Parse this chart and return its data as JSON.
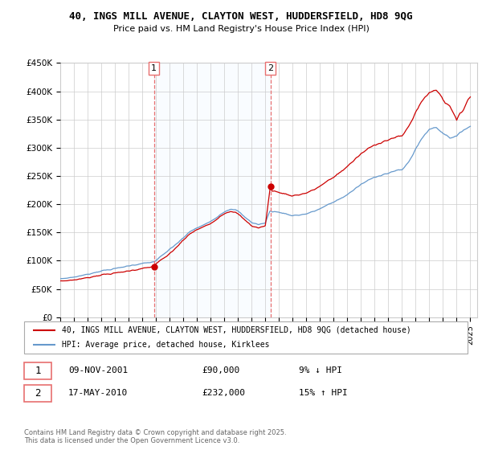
{
  "title": "40, INGS MILL AVENUE, CLAYTON WEST, HUDDERSFIELD, HD8 9QG",
  "subtitle": "Price paid vs. HM Land Registry's House Price Index (HPI)",
  "ylim": [
    0,
    450000
  ],
  "yticks": [
    0,
    50000,
    100000,
    150000,
    200000,
    250000,
    300000,
    350000,
    400000,
    450000
  ],
  "ytick_labels": [
    "£0",
    "£50K",
    "£100K",
    "£150K",
    "£200K",
    "£250K",
    "£300K",
    "£350K",
    "£400K",
    "£450K"
  ],
  "xlim_start": 1995.0,
  "xlim_end": 2025.5,
  "sale1_x": 2001.86,
  "sale1_y": 90000,
  "sale2_x": 2010.37,
  "sale2_y": 232000,
  "sale1_date": "09-NOV-2001",
  "sale1_price": "£90,000",
  "sale1_hpi": "9% ↓ HPI",
  "sale2_date": "17-MAY-2010",
  "sale2_price": "£232,000",
  "sale2_hpi": "15% ↑ HPI",
  "line_color_price": "#cc0000",
  "line_color_hpi": "#6699cc",
  "fill_color": "#ddeeff",
  "vline_color": "#e87070",
  "background_color": "#ffffff",
  "plot_bg_color": "#ffffff",
  "grid_color": "#cccccc",
  "legend_line1": "40, INGS MILL AVENUE, CLAYTON WEST, HUDDERSFIELD, HD8 9QG (detached house)",
  "legend_line2": "HPI: Average price, detached house, Kirklees",
  "copyright_text": "Contains HM Land Registry data © Crown copyright and database right 2025.\nThis data is licensed under the Open Government Licence v3.0."
}
